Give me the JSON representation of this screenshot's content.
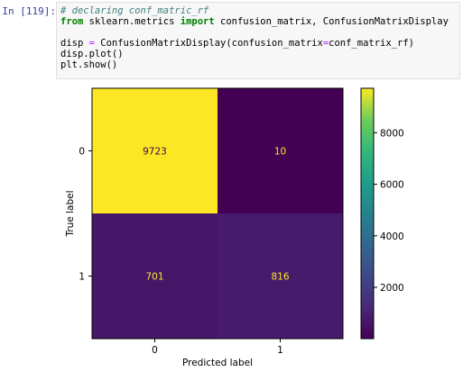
{
  "cell": {
    "prompt": "In [119]:",
    "comment": "# declaring conf_matric_rf",
    "line2_from": "from",
    "line2_module": " sklearn.metrics ",
    "line2_import": "import",
    "line2_rest": " confusion_matrix, ConfusionMatrixDisplay",
    "line4_a": "disp ",
    "line4_eq": "=",
    "line4_b": " ConfusionMatrixDisplay(confusion_matrix",
    "line4_eq2": "=",
    "line4_c": "conf_matrix_rf)",
    "line5": "disp.plot()",
    "line6": "plt.show()"
  },
  "chart_data": {
    "type": "heatmap",
    "xlabel": "Predicted label",
    "ylabel": "True label",
    "x_ticks": [
      "0",
      "1"
    ],
    "y_ticks": [
      "0",
      "1"
    ],
    "matrix": [
      [
        9723,
        10
      ],
      [
        701,
        816
      ]
    ],
    "colormap": "viridis",
    "colorbar_range": [
      10,
      9723
    ],
    "colorbar_ticks": [
      2000,
      4000,
      6000,
      8000
    ]
  },
  "colors": {
    "text_on_dark": "#fde725",
    "text_on_light": "#440154"
  }
}
